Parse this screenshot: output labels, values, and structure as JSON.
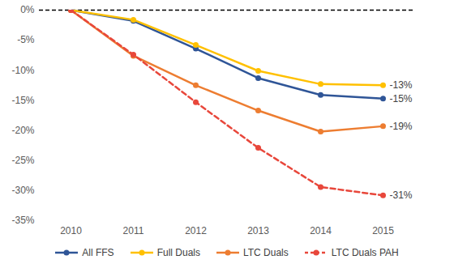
{
  "chart_data": {
    "type": "line",
    "categories": [
      "2010",
      "2011",
      "2012",
      "2013",
      "2014",
      "2015"
    ],
    "ylim": [
      -35,
      0
    ],
    "yticks": [
      {
        "value": 0,
        "label": "0%"
      },
      {
        "value": -5,
        "label": "-5%"
      },
      {
        "value": -10,
        "label": "-10%"
      },
      {
        "value": -15,
        "label": "-15%"
      },
      {
        "value": -20,
        "label": "-20%"
      },
      {
        "value": -25,
        "label": "-25%"
      },
      {
        "value": -30,
        "label": "-30%"
      },
      {
        "value": -35,
        "label": "-35%"
      }
    ],
    "grid": false,
    "legend": "bottom",
    "series": [
      {
        "name": "All FFS",
        "color": "#2f5597",
        "marker": "circle",
        "line_style": "solid",
        "values": [
          0,
          -1.8,
          -6.4,
          -11.3,
          -14.1,
          -14.7
        ],
        "value_labels": [
          null,
          null,
          null,
          null,
          null,
          "-15%"
        ]
      },
      {
        "name": "Full Duals",
        "color": "#ffc000",
        "marker": "circle",
        "line_style": "solid",
        "values": [
          0,
          -1.6,
          -5.8,
          -10.1,
          -12.3,
          -12.5
        ],
        "value_labels": [
          null,
          null,
          null,
          null,
          null,
          "-13%"
        ]
      },
      {
        "name": "LTC Duals",
        "color": "#ed7d31",
        "marker": "circle",
        "line_style": "solid",
        "values": [
          0,
          -7.6,
          -12.5,
          -16.7,
          -20.2,
          -19.3
        ],
        "value_labels": [
          null,
          null,
          null,
          null,
          null,
          "-19%"
        ]
      },
      {
        "name": "LTC Duals PAH",
        "color": "#e8473b",
        "marker": "circle",
        "line_style": "dashed",
        "values": [
          0,
          -7.4,
          -15.3,
          -22.9,
          -29.4,
          -30.8
        ],
        "value_labels": [
          null,
          null,
          null,
          null,
          null,
          "-31%"
        ]
      }
    ]
  }
}
